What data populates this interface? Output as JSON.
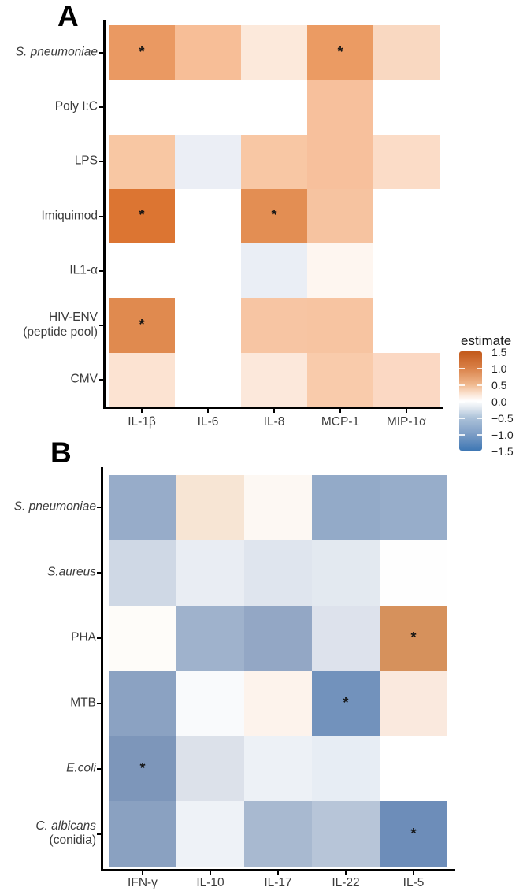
{
  "legend": {
    "title": "estimate",
    "tick_labels": [
      "1.5",
      "1.0",
      "0.5",
      "0.0",
      "−0.5",
      "−1.0",
      "−1.5"
    ],
    "high_color": "#C2591B",
    "mid_color": "#FFFFFF",
    "low_color": "#3E77B4"
  },
  "annotations": {
    "significance_marker": "*"
  },
  "chart_data": [
    {
      "type": "heatmap",
      "panel_label": "A",
      "x_categories": [
        "IL-1β",
        "IL-6",
        "IL-8",
        "MCP-1",
        "MIP-1α"
      ],
      "y_categories": [
        "S. pneumoniae",
        "Poly I:C",
        "LPS",
        "Imiquimod",
        "IL1-α",
        "HIV-ENV (peptide pool)",
        "CMV"
      ],
      "y_label_lines": [
        [
          "S. pneumoniae"
        ],
        [
          "Poly I:C"
        ],
        [
          "LPS"
        ],
        [
          "Imiquimod"
        ],
        [
          "IL1-α"
        ],
        [
          "HIV-ENV",
          "(peptide pool)"
        ],
        [
          "CMV"
        ]
      ],
      "y_italic": [
        true,
        false,
        false,
        false,
        false,
        false,
        false
      ],
      "value_range": [
        -1.5,
        1.5
      ],
      "estimates": [
        [
          0.85,
          0.5,
          0.14,
          0.83,
          0.28
        ],
        [
          0.0,
          0.0,
          0.0,
          0.47,
          0.0
        ],
        [
          0.42,
          -0.12,
          0.42,
          0.47,
          0.25
        ],
        [
          1.25,
          0.0,
          0.95,
          0.44,
          0.0
        ],
        [
          0.0,
          0.0,
          -0.12,
          0.05,
          0.0
        ],
        [
          1.0,
          0.0,
          0.43,
          0.43,
          0.0
        ],
        [
          0.18,
          0.0,
          0.14,
          0.38,
          0.27
        ]
      ],
      "cell_colors": [
        [
          "#EA9962",
          "#F7BE97",
          "#FCE9DB",
          "#EB9B63",
          "#F9D8C1"
        ],
        [
          "#FFFFFF",
          "#FFFFFF",
          "#FFFFFF",
          "#F7C09C",
          "#FFFFFF"
        ],
        [
          "#F8C7A3",
          "#EBEEF5",
          "#F8C7A4",
          "#F7C09C",
          "#FBDCC7"
        ],
        [
          "#DC7532",
          "#FFFFFF",
          "#E38E53",
          "#F6C3A0",
          "#FFFFFF"
        ],
        [
          "#FFFFFF",
          "#FFFFFF",
          "#EAEEF5",
          "#FEF6F0",
          "#FFFFFF"
        ],
        [
          "#E08A4F",
          "#FFFFFF",
          "#F7C5A3",
          "#F7C4A1",
          "#FFFFFF"
        ],
        [
          "#FCE3D2",
          "#FFFFFF",
          "#FCE8DB",
          "#F9CBAB",
          "#FBD8C3"
        ]
      ],
      "significant": [
        [
          0,
          0
        ],
        [
          0,
          3
        ],
        [
          3,
          0
        ],
        [
          3,
          2
        ],
        [
          5,
          0
        ]
      ]
    },
    {
      "type": "heatmap",
      "panel_label": "B",
      "x_categories": [
        "IFN-γ",
        "IL-10",
        "IL-17",
        "IL-22",
        "IL-5"
      ],
      "y_categories": [
        "S. pneumoniae",
        "S.aureus",
        "PHA",
        "MTB",
        "E.coli",
        "C. albicans (conidia)"
      ],
      "y_label_lines": [
        [
          "S. pneumoniae"
        ],
        [
          "S.aureus"
        ],
        [
          "PHA"
        ],
        [
          "MTB"
        ],
        [
          "E.coli"
        ],
        [
          "C. albicans",
          "(conidia)"
        ]
      ],
      "y_italic": [
        true,
        true,
        false,
        false,
        true,
        true
      ],
      "value_range": [
        -1.5,
        1.5
      ],
      "estimates": [
        [
          -0.72,
          0.2,
          0.04,
          -0.78,
          -0.72
        ],
        [
          -0.33,
          -0.15,
          -0.22,
          -0.18,
          0.0
        ],
        [
          0.02,
          -0.65,
          -0.78,
          -0.24,
          0.95
        ],
        [
          -0.85,
          -0.03,
          0.09,
          -1.1,
          0.16
        ],
        [
          -1.0,
          -0.25,
          -0.12,
          -0.16,
          0.0
        ],
        [
          -0.87,
          -0.1,
          -0.6,
          -0.45,
          -1.15
        ]
      ],
      "cell_colors": [
        [
          "#97ACC9",
          "#F7E5D4",
          "#FDF8F3",
          "#93AAC8",
          "#97ADCA"
        ],
        [
          "#CFD8E5",
          "#E9EDF3",
          "#DFE5EE",
          "#E3E9F0",
          "#FEFEFE"
        ],
        [
          "#FEFCF9",
          "#9FB2CC",
          "#93A7C5",
          "#DDE2EC",
          "#D6915C"
        ],
        [
          "#8BA2C2",
          "#F9FAFC",
          "#FDF3EC",
          "#7292BC",
          "#FAE9DE"
        ],
        [
          "#7D96BA",
          "#DCE1EA",
          "#EDF1F6",
          "#E7EDF4",
          "#FFFFFF"
        ],
        [
          "#8AA1C1",
          "#EEF2F7",
          "#A8B9D0",
          "#B7C5D8",
          "#6D8DB9"
        ]
      ],
      "significant": [
        [
          2,
          4
        ],
        [
          3,
          3
        ],
        [
          4,
          0
        ],
        [
          5,
          4
        ]
      ]
    }
  ]
}
